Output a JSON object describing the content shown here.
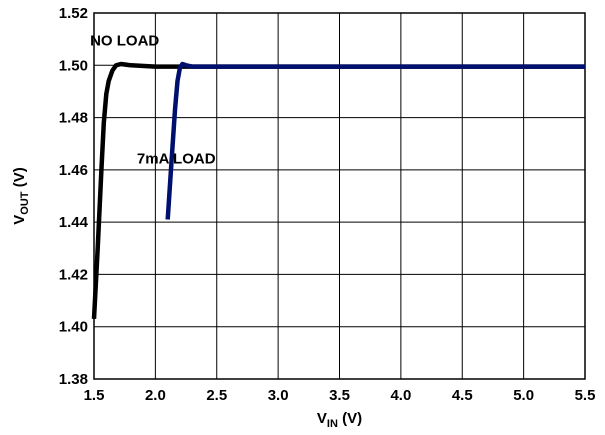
{
  "chart_data": {
    "type": "line",
    "xlabel": {
      "main": "V",
      "sub": "IN",
      "unit": " (V)"
    },
    "ylabel": {
      "main": "V",
      "sub": "OUT",
      "unit": " (V)"
    },
    "xlim": [
      1.5,
      5.5
    ],
    "ylim": [
      1.38,
      1.52
    ],
    "x_ticks": [
      "1.5",
      "2.0",
      "2.5",
      "3.0",
      "3.5",
      "4.0",
      "4.5",
      "5.0",
      "5.5"
    ],
    "y_ticks": [
      "1.38",
      "1.40",
      "1.42",
      "1.44",
      "1.46",
      "1.48",
      "1.50",
      "1.52"
    ],
    "grid": true,
    "series": [
      {
        "name": "NO LOAD",
        "color": "#000000",
        "x": [
          1.5,
          1.53,
          1.56,
          1.58,
          1.6,
          1.62,
          1.65,
          1.68,
          1.72,
          1.8,
          2.0,
          2.5,
          3.0,
          3.5,
          4.0,
          4.5,
          5.0,
          5.5
        ],
        "y": [
          1.403,
          1.43,
          1.46,
          1.478,
          1.489,
          1.494,
          1.498,
          1.5,
          1.5005,
          1.5,
          1.4995,
          1.4995,
          1.4995,
          1.4995,
          1.4995,
          1.4995,
          1.4995,
          1.4995
        ]
      },
      {
        "name": "7mA LOAD",
        "color": "#00106e",
        "x": [
          2.1,
          2.13,
          2.16,
          2.18,
          2.2,
          2.22,
          2.25,
          2.3,
          2.5,
          3.0,
          3.5,
          4.0,
          4.5,
          5.0,
          5.5
        ],
        "y": [
          1.441,
          1.462,
          1.483,
          1.494,
          1.499,
          1.5005,
          1.5,
          1.4995,
          1.4995,
          1.4995,
          1.4995,
          1.4995,
          1.4995,
          1.4995,
          1.4995
        ]
      }
    ],
    "annotations": [
      {
        "text": "NO LOAD",
        "x": 1.75,
        "y": 1.5075
      },
      {
        "text": "7mA LOAD",
        "x": 2.17,
        "y": 1.4625
      }
    ]
  }
}
